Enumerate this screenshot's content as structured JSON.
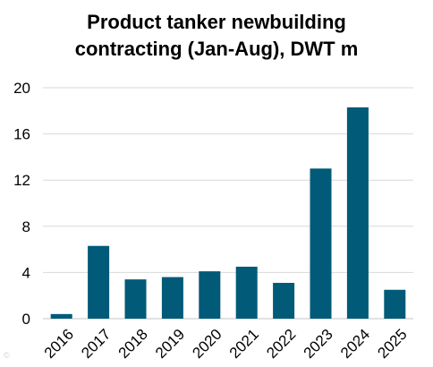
{
  "chart_data": {
    "type": "bar",
    "title_lines": [
      "Product tanker newbuilding",
      "contracting (Jan-Aug), DWT m"
    ],
    "xlabel": "",
    "ylabel": "",
    "categories": [
      "2016",
      "2017",
      "2018",
      "2019",
      "2020",
      "2021",
      "2022",
      "2023",
      "2024",
      "2025"
    ],
    "values": [
      0.4,
      6.3,
      3.4,
      3.6,
      4.1,
      4.5,
      3.1,
      13.0,
      18.3,
      2.5
    ],
    "ylim": [
      0,
      20
    ],
    "yticks": [
      0,
      4,
      8,
      12,
      16,
      20
    ],
    "grid": true,
    "legend": "none",
    "bar_color": "#005a78",
    "grid_color": "#d9d9d9"
  },
  "watermark": "©"
}
